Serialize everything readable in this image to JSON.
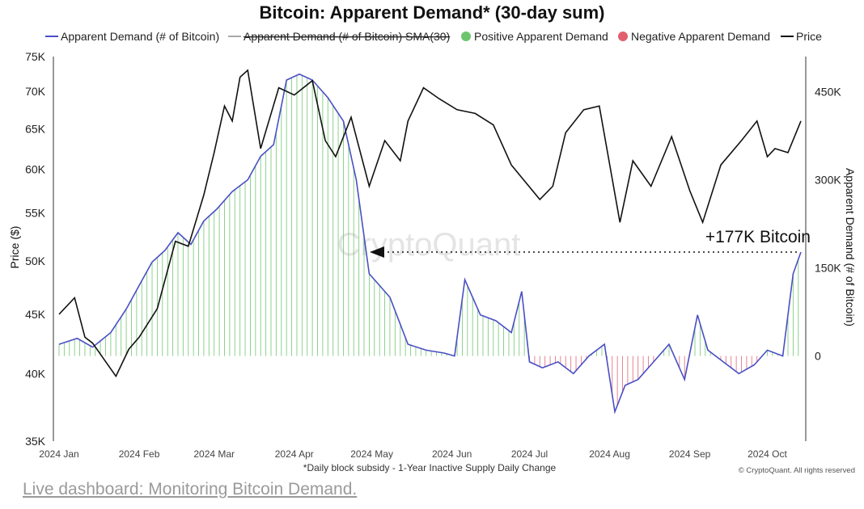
{
  "chart_data": {
    "type": "line",
    "title": "Bitcoin: Apparent Demand* (30-day sum)",
    "legend": [
      {
        "label": "Apparent Demand (# of Bitcoin)",
        "color": "#4a4fc4",
        "style": "line"
      },
      {
        "label": "Apparent Demand (# of Bitcoin)  SMA(30)",
        "color": "#aaaaaa",
        "style": "strikethrough"
      },
      {
        "label": "Positive Apparent Demand",
        "color": "#6cc56c",
        "style": "dot"
      },
      {
        "label": "Negative Apparent Demand",
        "color": "#e06070",
        "style": "dot"
      },
      {
        "label": "Price",
        "color": "#111111",
        "style": "line"
      }
    ],
    "x_labels": [
      "2024 Jan",
      "2024 Feb",
      "2024 Mar",
      "2024 Apr",
      "2024 May",
      "2024 Jun",
      "2024 Jul",
      "2024 Aug",
      "2024 Sep",
      "2024 Oct"
    ],
    "y_left": {
      "label": "Price ($)",
      "ticks": [
        "35K",
        "40K",
        "45K",
        "50K",
        "55K",
        "60K",
        "65K",
        "70K",
        "75K"
      ],
      "range": [
        35000,
        75000
      ],
      "scale": "log"
    },
    "y_right": {
      "label": "Apparent Demand (# of Bitcoin)",
      "ticks": [
        "0",
        "150K",
        "300K",
        "450K"
      ],
      "range": [
        -145000,
        510000
      ]
    },
    "series": [
      {
        "name": "Price",
        "color": "#111111",
        "x": [
          "2024-01-01",
          "2024-01-07",
          "2024-01-11",
          "2024-01-14",
          "2024-01-23",
          "2024-01-28",
          "2024-02-01",
          "2024-02-08",
          "2024-02-15",
          "2024-02-20",
          "2024-02-26",
          "2024-03-01",
          "2024-03-05",
          "2024-03-08",
          "2024-03-11",
          "2024-03-14",
          "2024-03-19",
          "2024-03-26",
          "2024-04-01",
          "2024-04-08",
          "2024-04-13",
          "2024-04-17",
          "2024-04-23",
          "2024-04-30",
          "2024-05-06",
          "2024-05-12",
          "2024-05-15",
          "2024-05-21",
          "2024-05-27",
          "2024-06-03",
          "2024-06-10",
          "2024-06-17",
          "2024-06-24",
          "2024-07-05",
          "2024-07-10",
          "2024-07-15",
          "2024-07-22",
          "2024-07-28",
          "2024-08-05",
          "2024-08-10",
          "2024-08-17",
          "2024-08-25",
          "2024-09-01",
          "2024-09-06",
          "2024-09-13",
          "2024-09-21",
          "2024-09-27",
          "2024-10-01",
          "2024-10-04",
          "2024-10-09",
          "2024-10-14"
        ],
        "values": [
          45000,
          46500,
          43000,
          42500,
          39800,
          42000,
          43000,
          45500,
          52000,
          51500,
          57000,
          62000,
          68000,
          66000,
          72000,
          73000,
          62500,
          70500,
          69500,
          71500,
          63500,
          61500,
          66500,
          58000,
          63500,
          61000,
          66000,
          70500,
          69000,
          67500,
          67000,
          65500,
          60500,
          56500,
          58000,
          64500,
          67500,
          68000,
          54000,
          61000,
          58000,
          64000,
          57500,
          54000,
          60500,
          63500,
          66000,
          61500,
          62500,
          62000,
          66000
        ]
      },
      {
        "name": "Apparent Demand (# of Bitcoin)",
        "color": "#4a4fc4",
        "x": [
          "2024-01-01",
          "2024-01-08",
          "2024-01-14",
          "2024-01-21",
          "2024-01-27",
          "2024-02-01",
          "2024-02-06",
          "2024-02-11",
          "2024-02-16",
          "2024-02-21",
          "2024-02-26",
          "2024-03-02",
          "2024-03-08",
          "2024-03-14",
          "2024-03-19",
          "2024-03-24",
          "2024-03-29",
          "2024-04-03",
          "2024-04-08",
          "2024-04-14",
          "2024-04-20",
          "2024-04-25",
          "2024-04-30",
          "2024-05-04",
          "2024-05-08",
          "2024-05-15",
          "2024-05-22",
          "2024-05-29",
          "2024-06-02",
          "2024-06-06",
          "2024-06-12",
          "2024-06-18",
          "2024-06-24",
          "2024-06-28",
          "2024-07-01",
          "2024-07-06",
          "2024-07-12",
          "2024-07-18",
          "2024-07-24",
          "2024-07-30",
          "2024-08-03",
          "2024-08-07",
          "2024-08-12",
          "2024-08-18",
          "2024-08-24",
          "2024-08-30",
          "2024-09-04",
          "2024-09-08",
          "2024-09-14",
          "2024-09-20",
          "2024-09-26",
          "2024-10-01",
          "2024-10-07",
          "2024-10-11",
          "2024-10-14"
        ],
        "values": [
          20000,
          30000,
          15000,
          40000,
          80000,
          120000,
          160000,
          180000,
          210000,
          190000,
          230000,
          250000,
          280000,
          300000,
          340000,
          360000,
          470000,
          480000,
          470000,
          440000,
          400000,
          300000,
          140000,
          120000,
          100000,
          20000,
          10000,
          5000,
          0,
          130000,
          70000,
          60000,
          40000,
          110000,
          -10000,
          -20000,
          -10000,
          -30000,
          0,
          20000,
          -95000,
          -50000,
          -40000,
          -10000,
          20000,
          -40000,
          70000,
          10000,
          -10000,
          -30000,
          -15000,
          10000,
          0,
          140000,
          177000
        ]
      }
    ],
    "annotations": [
      {
        "text": "+177K Bitcoin"
      }
    ],
    "watermark": "CryptoQuant",
    "footnote": "*Daily block subsidy - 1-Year Inactive Supply Daily Change",
    "copyright": "© CryptoQuant. All rights reserved",
    "grid": false,
    "legend_position": "top"
  },
  "page": {
    "caption_link": "Live dashboard: Monitoring Bitcoin Demand."
  }
}
